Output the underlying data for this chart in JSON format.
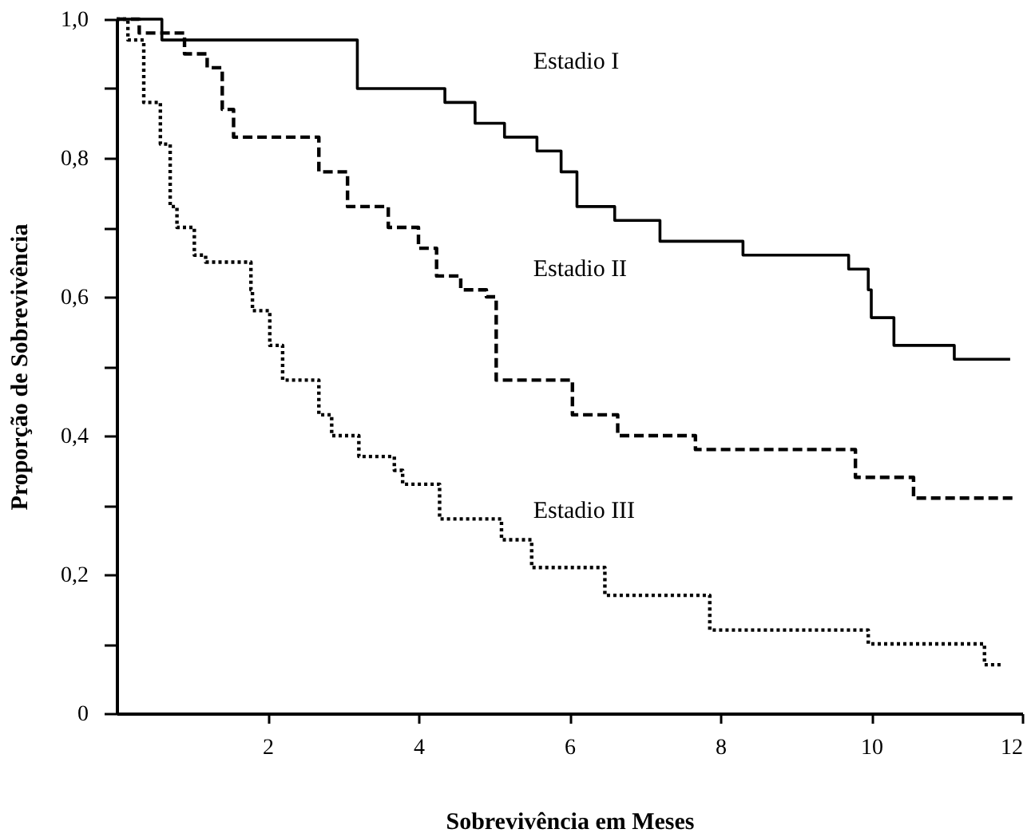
{
  "chart_data": {
    "type": "step",
    "xlabel": "Sobrevivência em Meses",
    "ylabel": "Proporção de Sobrevivência",
    "xlim": [
      0,
      12
    ],
    "ylim": [
      0,
      1
    ],
    "xticks": [
      2,
      4,
      6,
      8,
      10,
      12
    ],
    "yticks": [
      {
        "value": 0,
        "label": "0"
      },
      {
        "value": 0.1,
        "label": null
      },
      {
        "value": 0.2,
        "label": "0,2"
      },
      {
        "value": 0.3,
        "label": null
      },
      {
        "value": 0.4,
        "label": "0,4"
      },
      {
        "value": 0.5,
        "label": null
      },
      {
        "value": 0.6,
        "label": "0,6"
      },
      {
        "value": 0.7,
        "label": null
      },
      {
        "value": 0.8,
        "label": "0,8"
      },
      {
        "value": 0.9,
        "label": null
      },
      {
        "value": 1,
        "label": "1,0"
      }
    ],
    "grid": false,
    "marker": "none",
    "series": [
      {
        "name": "Estadio I",
        "color": "#000000",
        "line_style": "solid",
        "x": [
          0,
          0.6,
          3.19,
          4.35,
          4.75,
          5.14,
          5.57,
          5.89,
          6.1,
          6.6,
          7.2,
          8.3,
          9.7,
          9.96,
          10.0,
          10.3,
          11.1,
          11.84
        ],
        "values": [
          1,
          0.97,
          0.9,
          0.88,
          0.85,
          0.83,
          0.81,
          0.78,
          0.73,
          0.71,
          0.68,
          0.66,
          0.64,
          0.61,
          0.57,
          0.53,
          0.51,
          0.51
        ]
      },
      {
        "name": "Estadio II",
        "color": "#000000",
        "line_style": "dashed",
        "x": [
          0,
          0.3,
          0.9,
          1.2,
          1.4,
          1.55,
          2.68,
          3.06,
          3.6,
          4.0,
          4.24,
          4.56,
          4.9,
          5.03,
          6.04,
          6.64,
          7.67,
          9.79,
          10.56,
          11.93
        ],
        "values": [
          1,
          0.98,
          0.95,
          0.93,
          0.87,
          0.83,
          0.78,
          0.73,
          0.7,
          0.67,
          0.63,
          0.61,
          0.6,
          0.48,
          0.43,
          0.4,
          0.38,
          0.34,
          0.31,
          0.31
        ]
      },
      {
        "name": "Estadio III",
        "color": "#000000",
        "line_style": "dotted",
        "x": [
          0,
          0.15,
          0.36,
          0.58,
          0.71,
          0.8,
          1.03,
          1.18,
          1.78,
          1.8,
          2.03,
          2.2,
          2.68,
          2.85,
          3.21,
          3.68,
          3.79,
          4.28,
          5.1,
          5.5,
          6.47,
          7.86,
          9.96,
          11.5,
          11.73
        ],
        "values": [
          1,
          0.97,
          0.88,
          0.82,
          0.73,
          0.7,
          0.66,
          0.65,
          0.61,
          0.58,
          0.53,
          0.48,
          0.43,
          0.4,
          0.37,
          0.35,
          0.33,
          0.28,
          0.25,
          0.21,
          0.17,
          0.12,
          0.1,
          0.07,
          0.07
        ]
      }
    ]
  }
}
